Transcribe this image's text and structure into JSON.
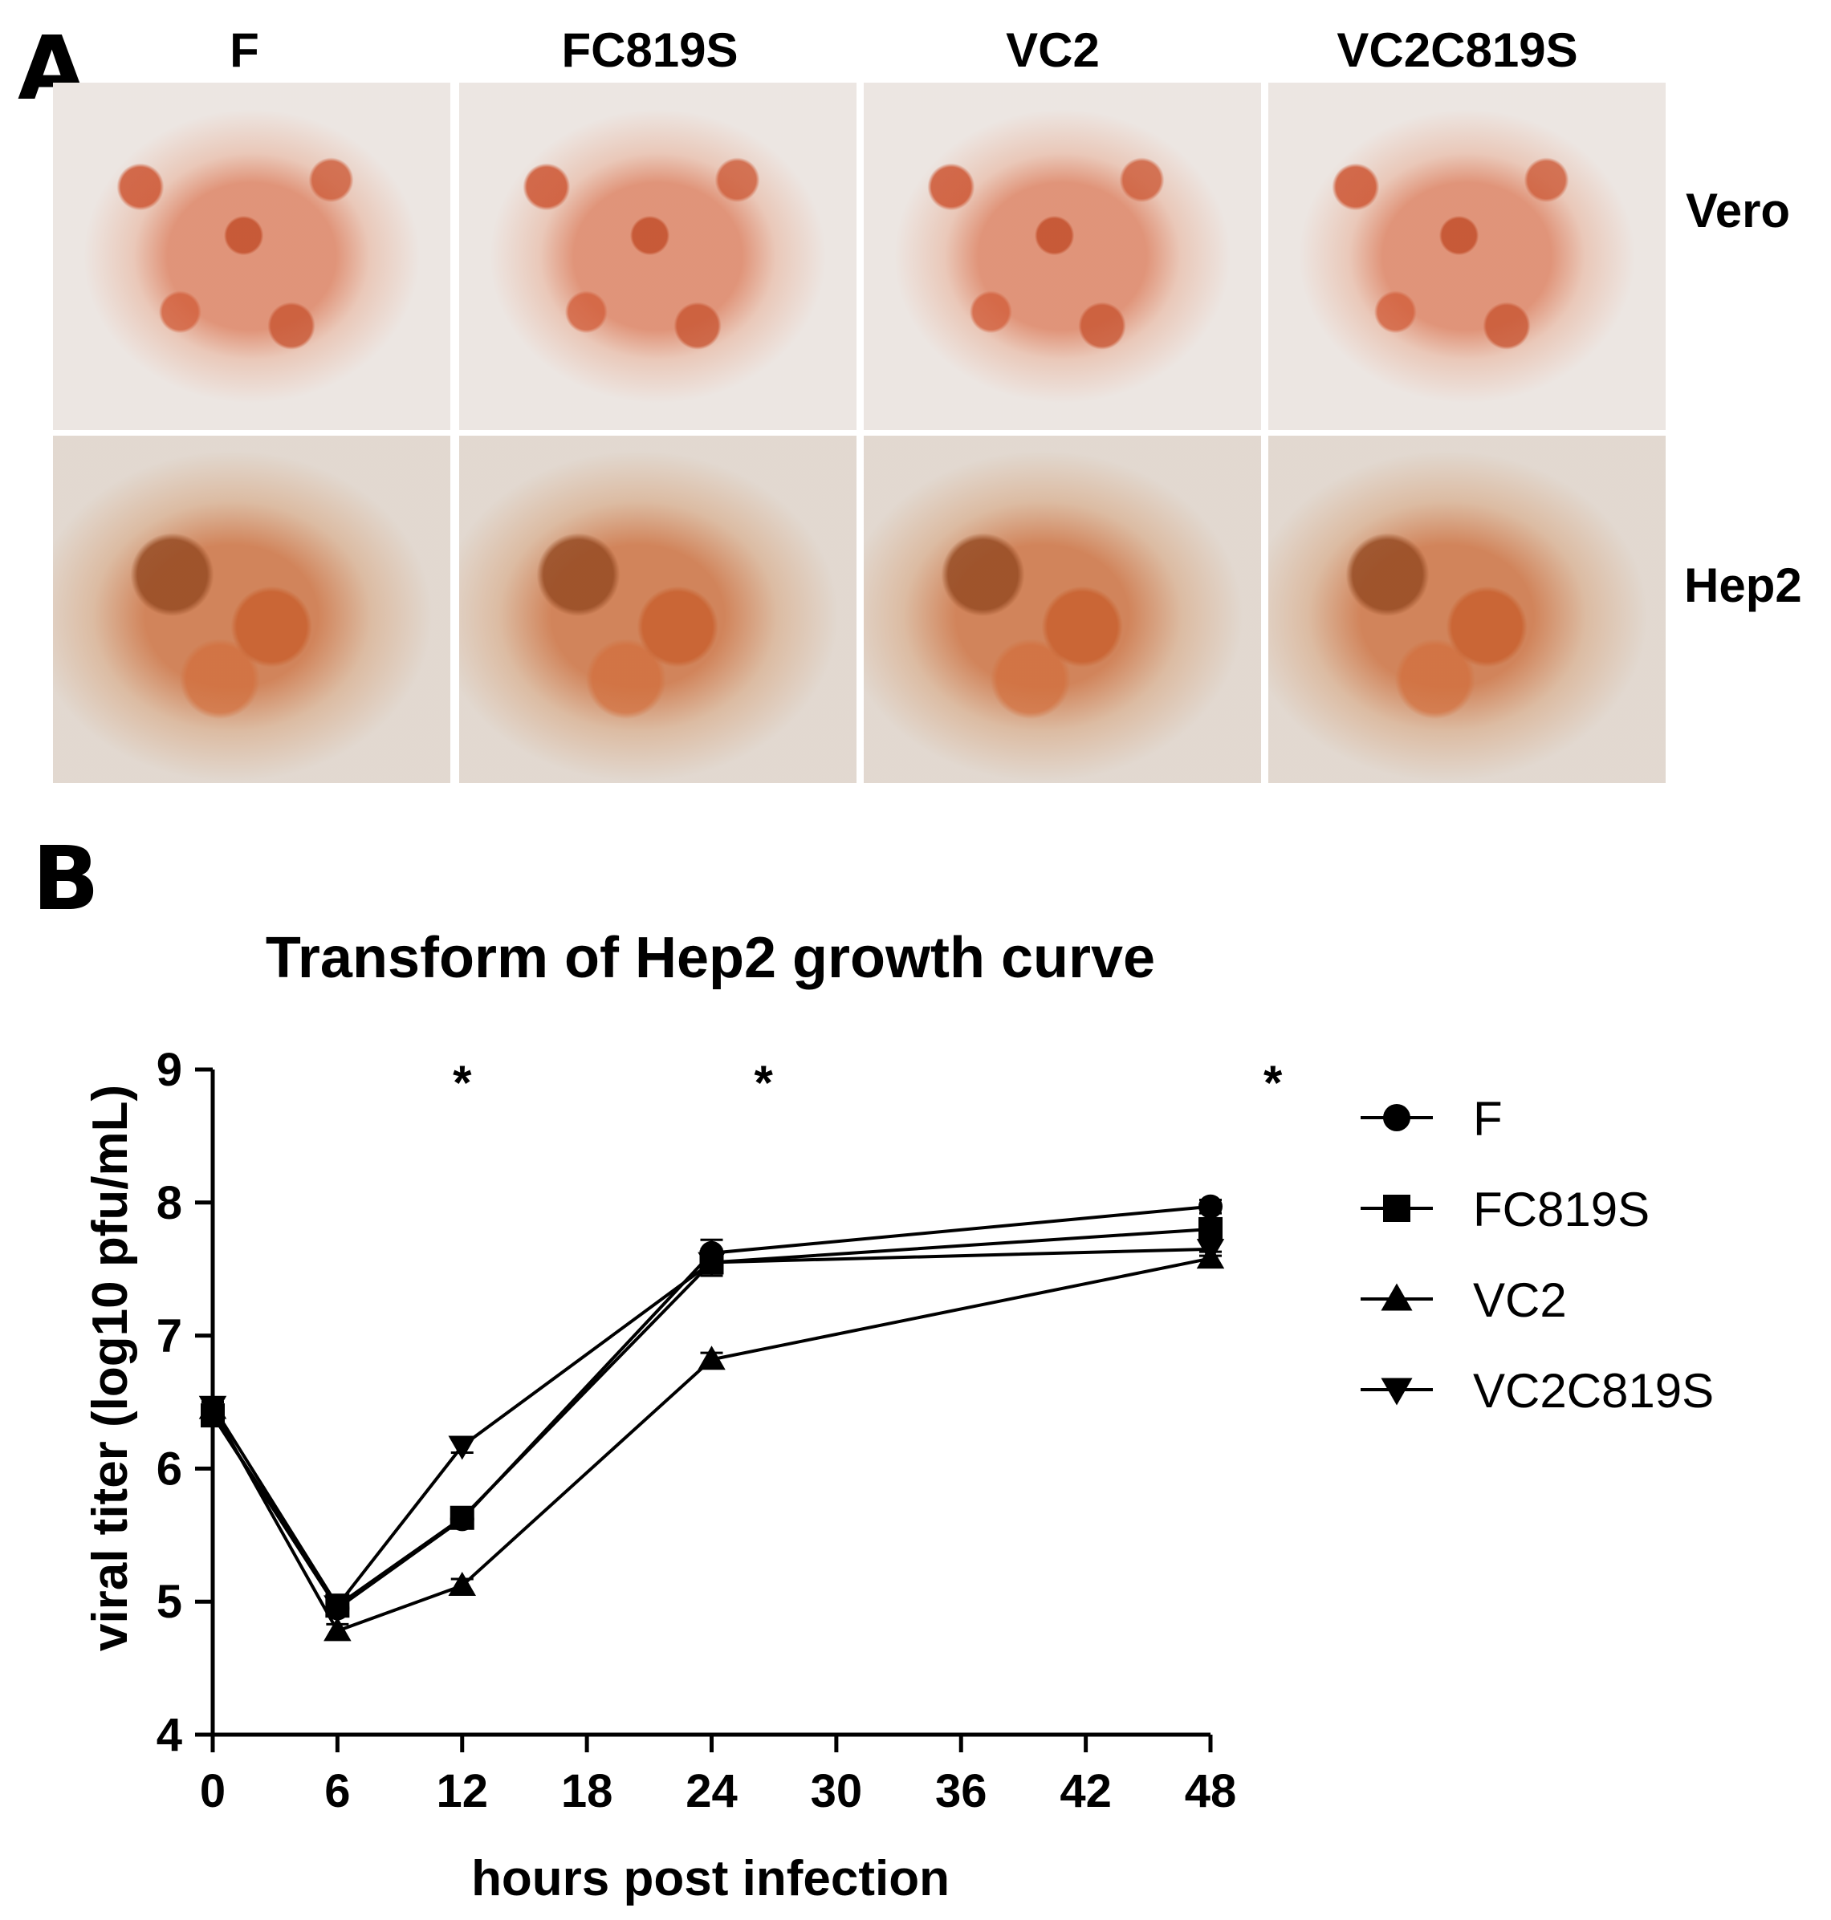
{
  "panel_a": {
    "letter": "A",
    "columns": [
      "F",
      "FC819S",
      "VC2",
      "VC2C819S"
    ],
    "rows": [
      "Vero",
      "Hep2"
    ]
  },
  "panel_b": {
    "letter": "B"
  },
  "chart_data": {
    "type": "line",
    "title": "Transform of Hep2 growth curve",
    "xlabel": "hours post infection",
    "ylabel": "viral titer (log10 pfu/mL)",
    "xlim": [
      0,
      48
    ],
    "ylim": [
      4,
      9
    ],
    "xticks": [
      "0",
      "6",
      "12",
      "18",
      "24",
      "30",
      "36",
      "42",
      "48"
    ],
    "yticks": [
      "4",
      "5",
      "6",
      "7",
      "8",
      "9"
    ],
    "x": [
      0,
      6,
      12,
      24,
      48
    ],
    "series": [
      {
        "name": "F",
        "marker": "circle",
        "values": [
          6.4,
          4.95,
          5.62,
          7.62,
          7.97
        ],
        "errors": [
          0.05,
          0.05,
          0.05,
          0.1,
          0.05
        ]
      },
      {
        "name": "FC819S",
        "marker": "square",
        "values": [
          6.4,
          4.97,
          5.63,
          7.55,
          7.8
        ],
        "errors": [
          0.05,
          0.05,
          0.05,
          0.1,
          0.05
        ]
      },
      {
        "name": "VC2",
        "marker": "triangle-up",
        "values": [
          6.45,
          4.78,
          5.12,
          6.82,
          7.58
        ],
        "errors": [
          0.05,
          0.05,
          0.05,
          0.05,
          0.05
        ]
      },
      {
        "name": "VC2C819S",
        "marker": "triangle-down",
        "values": [
          6.47,
          4.97,
          6.17,
          7.55,
          7.65
        ],
        "errors": [
          0.05,
          0.05,
          0.05,
          0.05,
          0.05
        ]
      }
    ],
    "annotations": [
      {
        "text": "*",
        "x": 12
      },
      {
        "text": "*",
        "x": 26.5
      },
      {
        "text": "*",
        "x": 51
      }
    ],
    "grid": false,
    "legend_position": "right"
  }
}
